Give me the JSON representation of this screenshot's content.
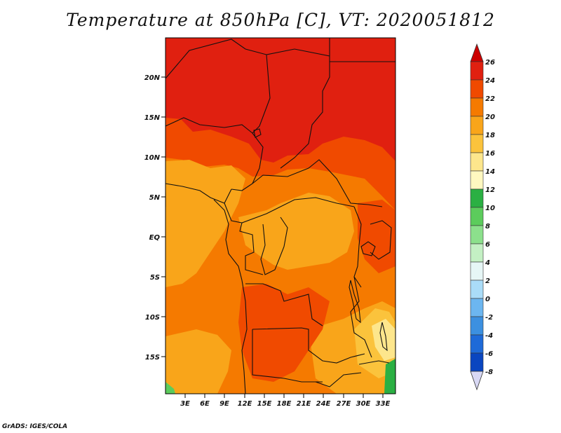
{
  "title": "Temperature at 850hPa [C], VT: 2020051812",
  "credit": "GrADS: IGES/COLA",
  "map": {
    "lat_labels": [
      "20N",
      "15N",
      "10N",
      "5N",
      "EQ",
      "5S",
      "10S",
      "15S"
    ],
    "lon_labels": [
      "3E",
      "6E",
      "9E",
      "12E",
      "15E",
      "18E",
      "21E",
      "24E",
      "27E",
      "30E",
      "33E"
    ]
  },
  "colorbar": {
    "labels": [
      "26",
      "24",
      "22",
      "20",
      "18",
      "16",
      "14",
      "12",
      "10",
      "8",
      "6",
      "4",
      "2",
      "0",
      "-2",
      "-4",
      "-6",
      "-8"
    ],
    "colors": [
      "#cc0000",
      "#e02010",
      "#f04a00",
      "#f57a00",
      "#f9a51a",
      "#fbc33c",
      "#fde68c",
      "#fff8c0",
      "#2bb043",
      "#5ccc5c",
      "#8ce08c",
      "#c4f0c4",
      "#e6f6f6",
      "#aadcf8",
      "#6cb6f0",
      "#3c90e0",
      "#1e6ad8",
      "#0a46c0",
      "#0a2a9c",
      "#081870"
    ]
  }
}
